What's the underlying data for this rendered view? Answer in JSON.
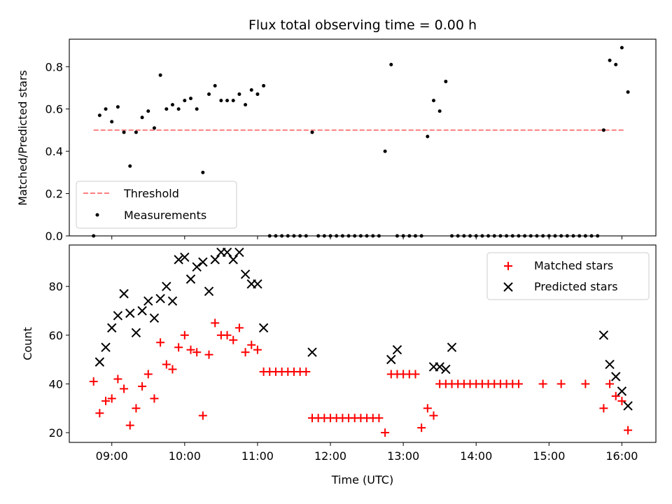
{
  "chart_data": [
    {
      "type": "scatter",
      "title": "Flux total observing time = 0.00 h",
      "xlabel": "",
      "ylabel": "Matched/Predicted stars",
      "ylim": [
        0,
        0.93
      ],
      "xlim": [
        "08:25",
        "16:28"
      ],
      "yticks": [
        "0.0",
        "0.2",
        "0.4",
        "0.6",
        "0.8"
      ],
      "legend": {
        "placement": "lower-left",
        "entries": [
          "Threshold",
          "Measurements"
        ]
      },
      "threshold": {
        "name": "Threshold",
        "value": 0.5,
        "x_start": "08:45",
        "x_end": "16:03",
        "color": "#ff7f7f"
      },
      "series": [
        {
          "name": "Measurements",
          "color": "#000000",
          "x": [
            "08:45",
            "08:50",
            "08:55",
            "09:00",
            "09:05",
            "09:10",
            "09:15",
            "09:20",
            "09:25",
            "09:30",
            "09:35",
            "09:40",
            "09:45",
            "09:50",
            "09:55",
            "10:00",
            "10:05",
            "10:10",
            "10:15",
            "10:20",
            "10:25",
            "10:30",
            "10:35",
            "10:40",
            "10:45",
            "10:50",
            "10:55",
            "11:00",
            "11:05",
            "11:10",
            "11:15",
            "11:20",
            "11:25",
            "11:30",
            "11:35",
            "11:40",
            "11:45",
            "11:50",
            "11:55",
            "12:00",
            "12:05",
            "12:10",
            "12:15",
            "12:20",
            "12:25",
            "12:30",
            "12:35",
            "12:40",
            "12:45",
            "12:50",
            "12:55",
            "13:00",
            "13:05",
            "13:10",
            "13:15",
            "13:20",
            "13:25",
            "13:30",
            "13:35",
            "13:40",
            "13:45",
            "13:50",
            "13:55",
            "14:00",
            "14:05",
            "14:10",
            "14:15",
            "14:20",
            "14:25",
            "14:30",
            "14:35",
            "14:40",
            "14:45",
            "14:50",
            "14:55",
            "15:00",
            "15:05",
            "15:10",
            "15:15",
            "15:20",
            "15:25",
            "15:30",
            "15:35",
            "15:40",
            "15:45",
            "15:50",
            "15:55",
            "16:00",
            "16:05"
          ],
          "y": [
            0.0,
            0.57,
            0.6,
            0.54,
            0.61,
            0.49,
            0.33,
            0.49,
            0.56,
            0.59,
            0.51,
            0.76,
            0.6,
            0.62,
            0.6,
            0.64,
            0.65,
            0.6,
            0.3,
            0.67,
            0.71,
            0.64,
            0.64,
            0.64,
            0.67,
            0.62,
            0.69,
            0.67,
            0.71,
            0.0,
            0.0,
            0.0,
            0.0,
            0.0,
            0.0,
            0.0,
            0.49,
            0.0,
            0.0,
            0.0,
            0.0,
            0.0,
            0.0,
            0.0,
            0.0,
            0.0,
            0.0,
            0.0,
            0.4,
            0.81,
            0.0,
            0.0,
            0.0,
            0.0,
            0.0,
            0.47,
            0.64,
            0.59,
            0.73,
            0.0,
            0.0,
            0.0,
            0.0,
            0.0,
            0.0,
            0.0,
            0.0,
            0.0,
            0.0,
            0.0,
            0.0,
            0.0,
            0.0,
            0.0,
            0.0,
            0.0,
            0.0,
            0.0,
            0.0,
            0.0,
            0.0,
            0.0,
            0.0,
            0.0,
            0.5,
            0.83,
            0.81,
            0.89,
            0.68
          ]
        }
      ]
    },
    {
      "type": "scatter",
      "title": "",
      "xlabel": "Time (UTC)",
      "ylabel": "Count",
      "ylim": [
        16,
        97
      ],
      "xlim": [
        "08:25",
        "16:28"
      ],
      "yticks": [
        "20",
        "40",
        "60",
        "80"
      ],
      "xticks": [
        "09:00",
        "10:00",
        "11:00",
        "12:00",
        "13:00",
        "14:00",
        "15:00",
        "16:00"
      ],
      "legend": {
        "placement": "top-right",
        "entries": [
          "Matched stars",
          "Predicted stars"
        ]
      },
      "series": [
        {
          "name": "Matched stars",
          "marker": "plus",
          "color": "#ff0000",
          "x": [
            "08:45",
            "08:50",
            "08:55",
            "09:00",
            "09:05",
            "09:10",
            "09:15",
            "09:20",
            "09:25",
            "09:30",
            "09:35",
            "09:40",
            "09:45",
            "09:50",
            "09:55",
            "10:00",
            "10:05",
            "10:10",
            "10:15",
            "10:20",
            "10:25",
            "10:30",
            "10:35",
            "10:40",
            "10:45",
            "10:50",
            "10:55",
            "11:00",
            "11:05",
            "11:10",
            "11:15",
            "11:20",
            "11:25",
            "11:30",
            "11:35",
            "11:40",
            "11:45",
            "11:50",
            "11:55",
            "12:00",
            "12:05",
            "12:10",
            "12:15",
            "12:20",
            "12:25",
            "12:30",
            "12:35",
            "12:40",
            "12:45",
            "12:50",
            "12:55",
            "13:00",
            "13:05",
            "13:10",
            "13:15",
            "13:20",
            "13:25",
            "13:30",
            "13:35",
            "13:40",
            "13:45",
            "13:50",
            "13:55",
            "14:00",
            "14:05",
            "14:10",
            "14:15",
            "14:20",
            "14:25",
            "14:30",
            "14:35",
            "14:55",
            "15:10",
            "15:30",
            "15:45",
            "15:50",
            "15:55",
            "16:00",
            "16:05"
          ],
          "y": [
            41,
            28,
            33,
            34,
            42,
            38,
            23,
            30,
            39,
            44,
            34,
            57,
            48,
            46,
            55,
            60,
            54,
            53,
            27,
            52,
            65,
            60,
            60,
            58,
            63,
            53,
            56,
            54,
            45,
            45,
            45,
            45,
            45,
            45,
            45,
            45,
            26,
            26,
            26,
            26,
            26,
            26,
            26,
            26,
            26,
            26,
            26,
            26,
            20,
            44,
            44,
            44,
            44,
            44,
            22,
            30,
            27,
            40,
            40,
            40,
            40,
            40,
            40,
            40,
            40,
            40,
            40,
            40,
            40,
            40,
            40,
            40,
            40,
            40,
            30,
            40,
            35,
            33,
            21
          ]
        },
        {
          "name": "Predicted stars",
          "marker": "x",
          "color": "#000000",
          "x": [
            "08:50",
            "08:55",
            "09:00",
            "09:05",
            "09:10",
            "09:15",
            "09:20",
            "09:25",
            "09:30",
            "09:35",
            "09:40",
            "09:45",
            "09:50",
            "09:55",
            "10:00",
            "10:05",
            "10:10",
            "10:15",
            "10:20",
            "10:25",
            "10:30",
            "10:35",
            "10:40",
            "10:45",
            "10:50",
            "10:55",
            "11:00",
            "11:05",
            "11:45",
            "12:50",
            "12:55",
            "13:25",
            "13:30",
            "13:35",
            "13:40",
            "15:45",
            "15:50",
            "15:55",
            "16:00",
            "16:05"
          ],
          "y": [
            49,
            55,
            63,
            68,
            77,
            69,
            61,
            70,
            74,
            67,
            75,
            80,
            74,
            91,
            92,
            83,
            88,
            90,
            78,
            91,
            94,
            94,
            91,
            94,
            85,
            81,
            81,
            63,
            53,
            50,
            54,
            47,
            47,
            46,
            55,
            60,
            48,
            43,
            37,
            31
          ]
        }
      ]
    }
  ]
}
